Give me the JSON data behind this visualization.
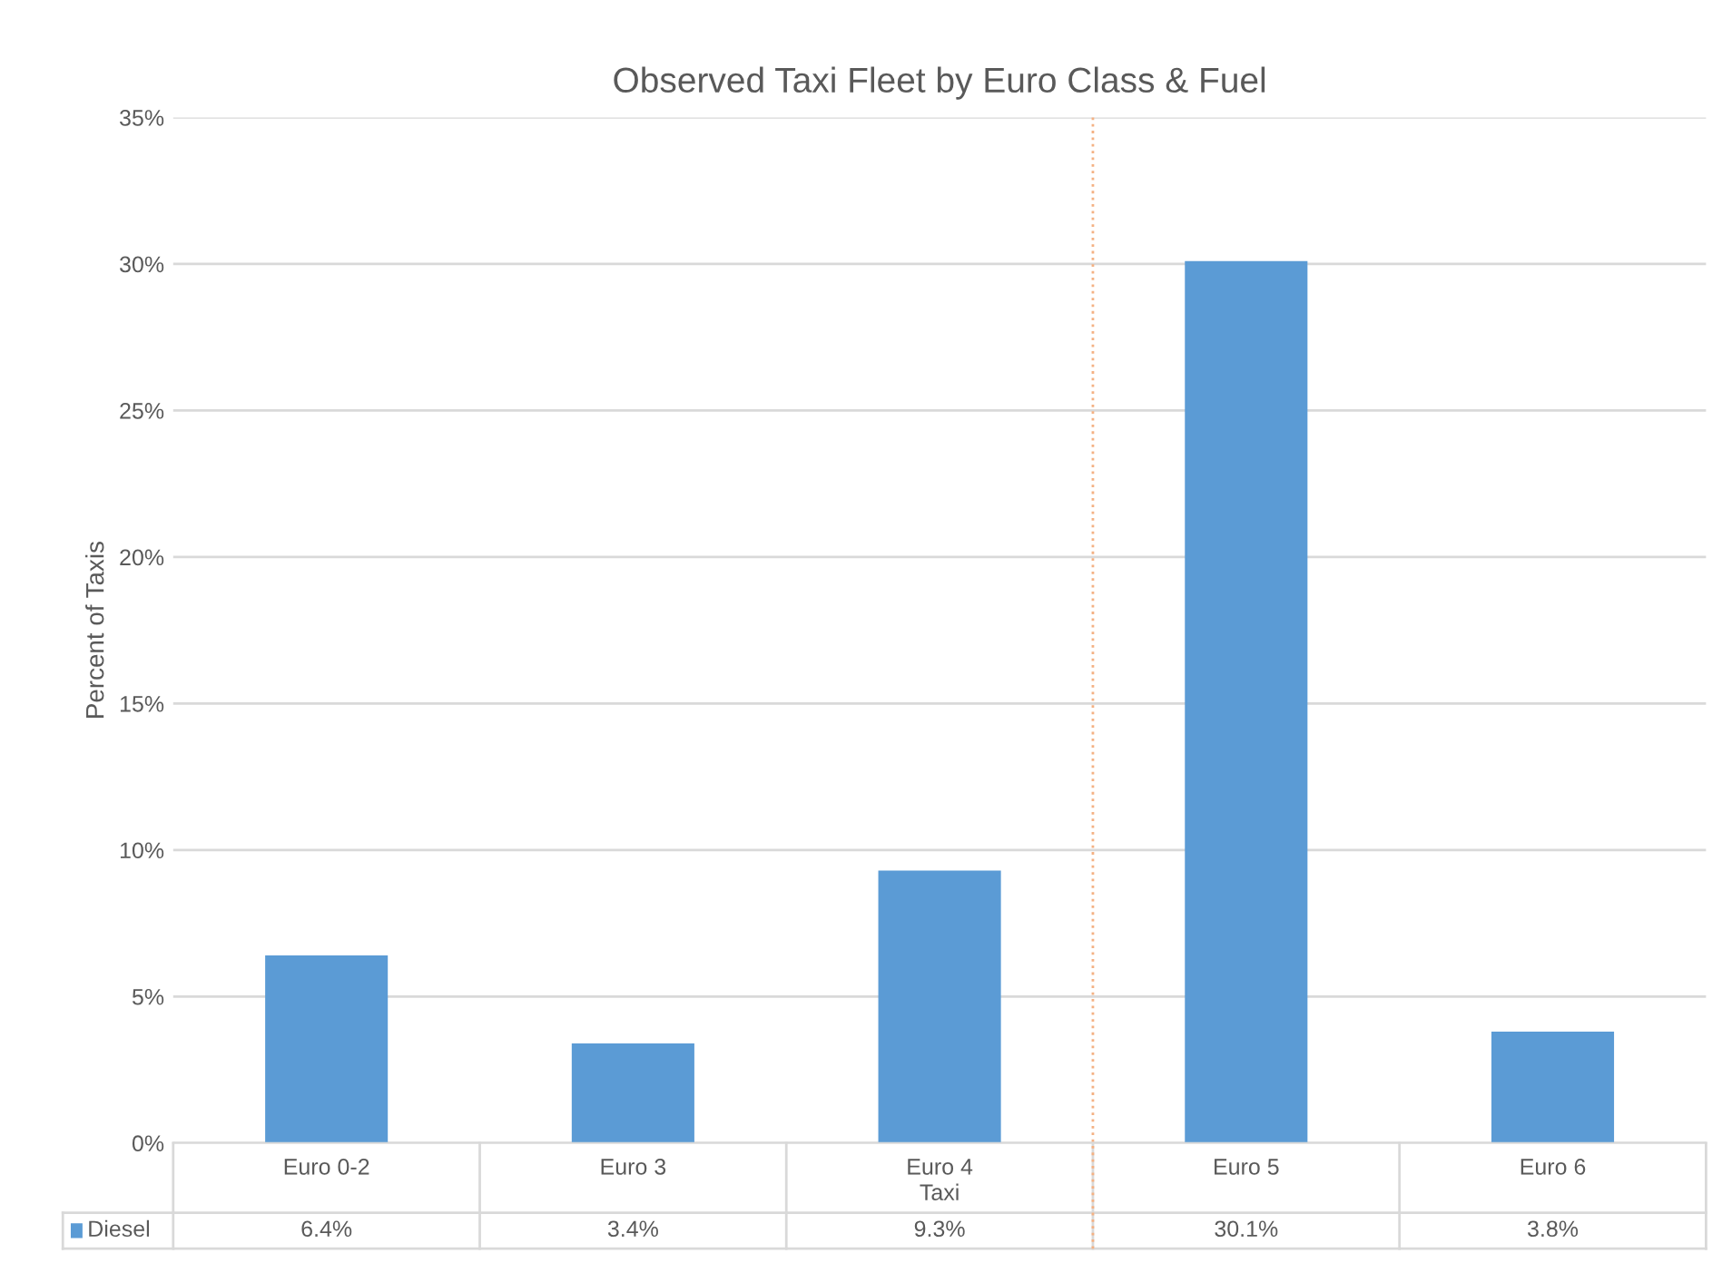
{
  "chart_data": {
    "type": "bar",
    "title": "Observed Taxi Fleet by Euro Class & Fuel",
    "xlabel": "Taxi",
    "ylabel": "Percent of Taxis",
    "categories": [
      "Euro 0-2",
      "Euro 3",
      "Euro 4",
      "Euro 5",
      "Euro 6"
    ],
    "series": [
      {
        "name": "Diesel",
        "color": "#5b9bd5",
        "values": [
          6.4,
          3.4,
          9.3,
          30.1,
          3.8
        ],
        "value_labels": [
          "6.4%",
          "3.4%",
          "9.3%",
          "30.1%",
          "3.8%"
        ]
      }
    ],
    "ylim": [
      0,
      35
    ],
    "yticks": [
      {
        "value": 0,
        "label": "0%"
      },
      {
        "value": 5,
        "label": "5%"
      },
      {
        "value": 10,
        "label": "10%"
      },
      {
        "value": 15,
        "label": "15%"
      },
      {
        "value": 20,
        "label": "20%"
      },
      {
        "value": 25,
        "label": "25%"
      },
      {
        "value": 30,
        "label": "30%"
      },
      {
        "value": 35,
        "label": "35%"
      }
    ],
    "grid": "y",
    "legend": "bottom",
    "ref_lines": [
      {
        "axis": "x",
        "value": "Euro 5",
        "color": "#f4b183",
        "line_style": "dotted"
      }
    ]
  }
}
